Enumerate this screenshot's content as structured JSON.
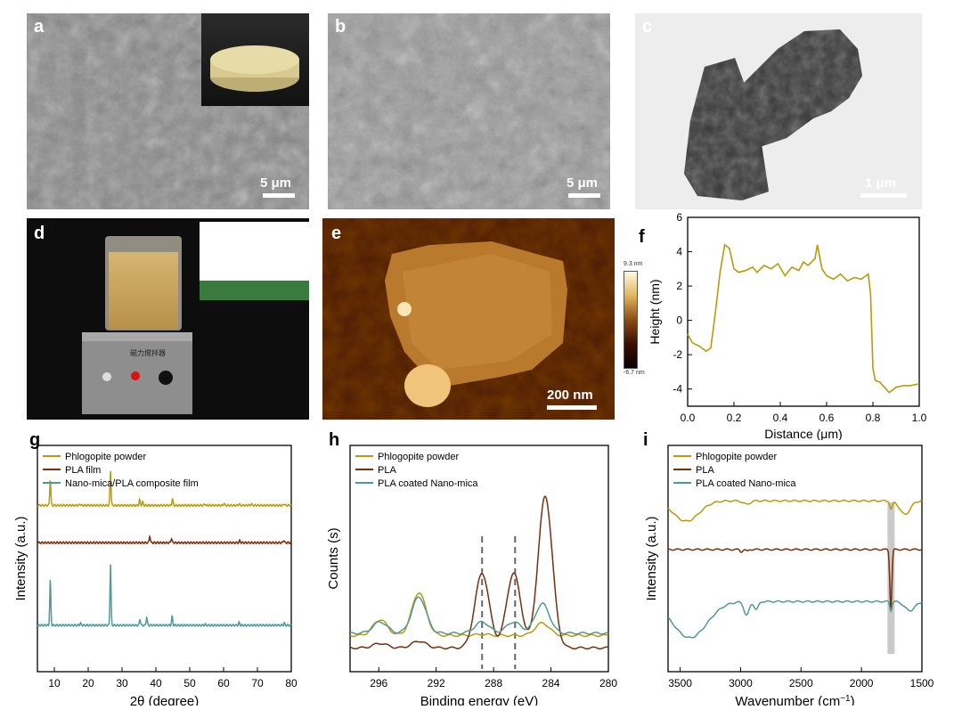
{
  "panels": {
    "a": {
      "label": "a",
      "scale": "5 μm"
    },
    "b": {
      "label": "b",
      "scale": "5 μm"
    },
    "c": {
      "label": "c",
      "scale": "1 μm"
    },
    "d": {
      "label": "d",
      "device_label_1": "磁力搅拌器"
    },
    "e": {
      "label": "e",
      "scale": "200 nm",
      "colorbar_max": "9.3 nm",
      "colorbar_min": "-6.7 nm"
    },
    "f": {
      "label": "f"
    },
    "g": {
      "label": "g"
    },
    "h": {
      "label": "h"
    },
    "i": {
      "label": "i"
    }
  },
  "chart_data": [
    {
      "id": "f",
      "type": "line",
      "xlabel": "Distance (μm)",
      "ylabel": "Height (nm)",
      "xlim": [
        0.0,
        1.0
      ],
      "ylim": [
        -5,
        6
      ],
      "xticks": [
        "0.0",
        "0.2",
        "0.4",
        "0.6",
        "0.8",
        "1.0"
      ],
      "yticks": [
        "-4",
        "-2",
        "0",
        "2",
        "4",
        "6"
      ],
      "color": "#b89b0c",
      "x": [
        0.0,
        0.02,
        0.05,
        0.08,
        0.1,
        0.12,
        0.14,
        0.16,
        0.18,
        0.2,
        0.22,
        0.25,
        0.28,
        0.3,
        0.33,
        0.36,
        0.39,
        0.42,
        0.45,
        0.48,
        0.5,
        0.52,
        0.55,
        0.56,
        0.58,
        0.6,
        0.63,
        0.66,
        0.69,
        0.72,
        0.75,
        0.78,
        0.79,
        0.8,
        0.81,
        0.83,
        0.85,
        0.87,
        0.9,
        0.93,
        0.96,
        1.0
      ],
      "y": [
        -0.8,
        -1.3,
        -1.5,
        -1.8,
        -1.6,
        0.5,
        2.8,
        4.4,
        4.2,
        3.0,
        2.8,
        2.9,
        3.1,
        2.8,
        3.2,
        3.0,
        3.3,
        2.6,
        3.1,
        2.9,
        3.4,
        3.2,
        3.6,
        4.4,
        3.0,
        2.6,
        2.4,
        2.7,
        2.3,
        2.5,
        2.4,
        2.7,
        1.5,
        -2.8,
        -3.5,
        -3.6,
        -3.9,
        -4.2,
        -3.9,
        -3.8,
        -3.8,
        -3.7
      ]
    },
    {
      "id": "g",
      "type": "line",
      "xlabel": "2θ (degree)",
      "ylabel": "Intensity (a.u.)",
      "xlim": [
        5,
        80
      ],
      "ylim": [
        0,
        10
      ],
      "xticks": [
        "10",
        "20",
        "30",
        "40",
        "50",
        "60",
        "70",
        "80"
      ],
      "series": [
        {
          "name": "Phlogopite powder",
          "color": "#b89b0c",
          "baseline": 7.35,
          "peaks": [
            [
              8.8,
              1.2
            ],
            [
              17.6,
              0.05
            ],
            [
              26.6,
              1.55
            ],
            [
              35.2,
              0.25
            ],
            [
              36.1,
              0.15
            ],
            [
              44.9,
              0.3
            ],
            [
              54.4,
              0.07
            ],
            [
              60.1,
              0.08
            ],
            [
              64.6,
              0.07
            ],
            [
              68.2,
              0.07
            ],
            [
              77.9,
              0.07
            ]
          ]
        },
        {
          "name": "PLA film",
          "color": "#7a2e0e",
          "baseline": 5.7,
          "peaks": [
            [
              38.2,
              0.32
            ],
            [
              44.6,
              0.2
            ],
            [
              64.8,
              0.1
            ],
            [
              77.8,
              0.12
            ]
          ]
        },
        {
          "name": "Nano-mica/PLA composite film",
          "color": "#4e9a98",
          "baseline": 2.05,
          "peaks": [
            [
              8.8,
              2.1
            ],
            [
              17.7,
              0.1
            ],
            [
              26.6,
              2.7
            ],
            [
              35.3,
              0.3
            ],
            [
              37.3,
              0.4
            ],
            [
              44.8,
              0.42
            ],
            [
              54.5,
              0.06
            ],
            [
              64.6,
              0.12
            ],
            [
              77.9,
              0.1
            ]
          ]
        }
      ]
    },
    {
      "id": "h",
      "type": "line",
      "xlabel": "Binding energy (eV)",
      "ylabel": "Counts (s)",
      "xlim": [
        298,
        280
      ],
      "ylim": [
        0,
        10
      ],
      "xticks": [
        "296",
        "292",
        "288",
        "284",
        "280"
      ],
      "dashed_lines_at": [
        288.8,
        286.5
      ],
      "series": [
        {
          "name": "Phlogopite powder",
          "color": "#b89b0c",
          "baseline": 1.6,
          "peaks": [
            [
              295.9,
              0.7
            ],
            [
              293.2,
              1.9
            ],
            [
              288.8,
              0.05
            ],
            [
              284.6,
              0.55
            ]
          ]
        },
        {
          "name": "PLA",
          "color": "#7a2e0e",
          "baseline": 1.05,
          "peaks": [
            [
              288.8,
              3.3
            ],
            [
              286.6,
              3.3
            ],
            [
              284.4,
              6.7
            ],
            [
              295.9,
              0.2
            ],
            [
              293.2,
              0.3
            ]
          ]
        },
        {
          "name": "PLA coated Nano-mica",
          "color": "#4e9a98",
          "baseline": 1.7,
          "peaks": [
            [
              295.9,
              0.5
            ],
            [
              293.2,
              1.6
            ],
            [
              288.8,
              0.5
            ],
            [
              286.6,
              0.5
            ],
            [
              284.6,
              1.3
            ]
          ]
        }
      ]
    },
    {
      "id": "i",
      "type": "line",
      "xlabel": "Wavenumber (cm",
      "xlabel_sup": "−1",
      "xlabel_end": ")",
      "ylabel": "Intensity (a.u.)",
      "xlim": [
        3600,
        1500
      ],
      "ylim": [
        0,
        10
      ],
      "xticks": [
        "3500",
        "3000",
        "2500",
        "2000",
        "1500"
      ],
      "highlight_at": 1755,
      "series": [
        {
          "name": "Phlogopite powder",
          "color": "#b89b0c",
          "baseline": 7.55,
          "features": [
            [
              3450,
              -0.9,
              150
            ],
            [
              2950,
              -0.15,
              40
            ],
            [
              1755,
              -0.35,
              15
            ],
            [
              1640,
              -0.6,
              60
            ]
          ]
        },
        {
          "name": "PLA",
          "color": "#7a2e0e",
          "baseline": 5.4,
          "features": [
            [
              2995,
              -0.1,
              15
            ],
            [
              2945,
              -0.08,
              15
            ],
            [
              1757,
              -2.6,
              12
            ]
          ]
        },
        {
          "name": "PLA coated Nano-mica",
          "color": "#4e9a98",
          "baseline": 3.1,
          "features": [
            [
              3420,
              -1.6,
              200
            ],
            [
              2950,
              -0.6,
              30
            ],
            [
              2870,
              -0.35,
              25
            ],
            [
              1757,
              -0.4,
              12
            ],
            [
              1600,
              -0.4,
              60
            ]
          ]
        }
      ]
    }
  ]
}
